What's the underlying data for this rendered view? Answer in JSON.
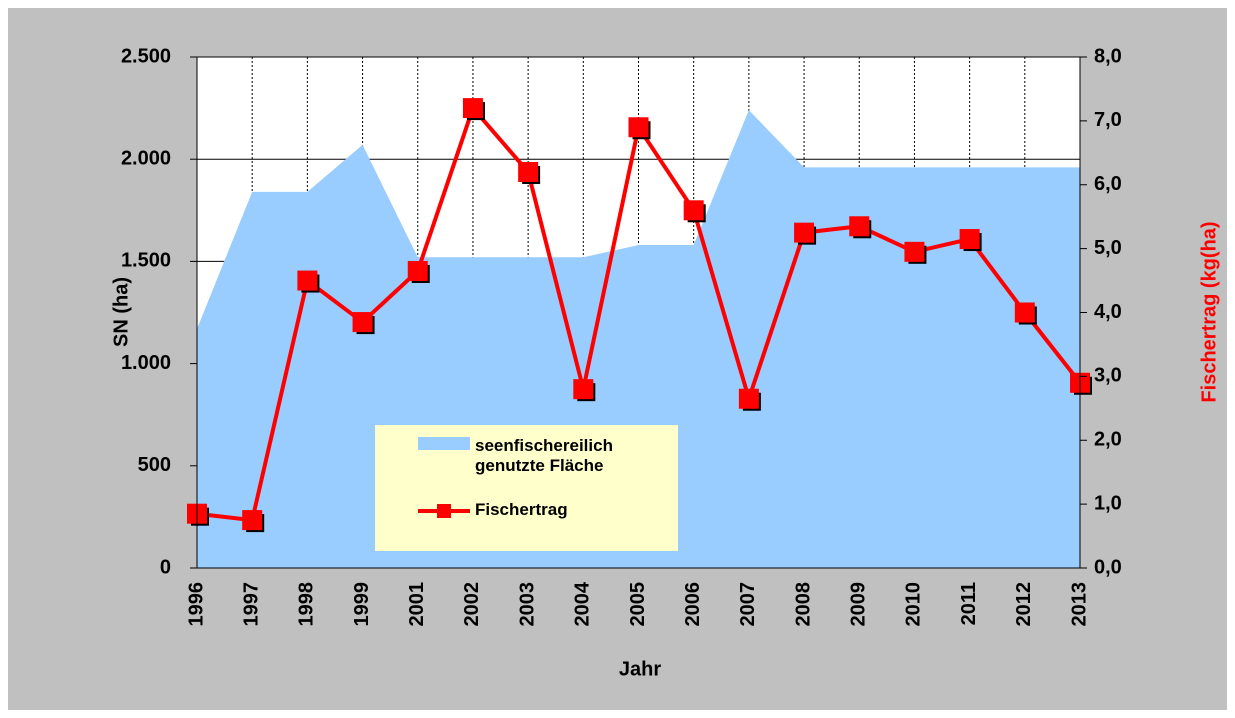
{
  "chart_data": {
    "type": "combo",
    "x_label": "Jahr",
    "y_label": "SN (ha)",
    "y2_label": "Fischertrag (kg(ha)",
    "categories": [
      "1996",
      "1997",
      "1998",
      "1999",
      "2001",
      "2002",
      "2003",
      "2004",
      "2005",
      "2006",
      "2007",
      "2008",
      "2009",
      "2010",
      "2011",
      "2012",
      "2013"
    ],
    "series": [
      {
        "name": "seenfischereilich genutzte Fläche",
        "type": "area",
        "color": "#99ccff",
        "values": [
          1170,
          1840,
          1840,
          2070,
          1520,
          1520,
          1520,
          1520,
          1580,
          1580,
          2240,
          1960,
          1960,
          1960,
          1960,
          1960,
          1960
        ]
      },
      {
        "name": "Fischertrag",
        "type": "line",
        "axis": "y2",
        "color": "#ff0000",
        "values": [
          0.85,
          0.75,
          4.5,
          3.85,
          4.65,
          7.2,
          6.2,
          2.8,
          6.9,
          5.6,
          2.65,
          5.25,
          5.35,
          4.95,
          5.15,
          4.0,
          2.9
        ]
      }
    ],
    "ylim": [
      0,
      2500
    ],
    "yticks": [
      0,
      500,
      {
        "value": 1000,
        "label": "1.000"
      },
      {
        "value": 1500,
        "label": "1.500"
      },
      {
        "value": 2000,
        "label": "2.000"
      },
      {
        "value": 2500,
        "label": "2.500"
      }
    ],
    "y2lim": [
      0,
      8
    ],
    "y2ticks": [
      {
        "value": 0,
        "label": "0,0"
      },
      {
        "value": 1,
        "label": "1,0"
      },
      {
        "value": 2,
        "label": "2,0"
      },
      {
        "value": 3,
        "label": "3,0"
      },
      {
        "value": 4,
        "label": "4,0"
      },
      {
        "value": 5,
        "label": "5,0"
      },
      {
        "value": 6,
        "label": "6,0"
      },
      {
        "value": 7,
        "label": "7,0"
      },
      {
        "value": 8,
        "label": "8,0"
      }
    ],
    "grid": true
  }
}
